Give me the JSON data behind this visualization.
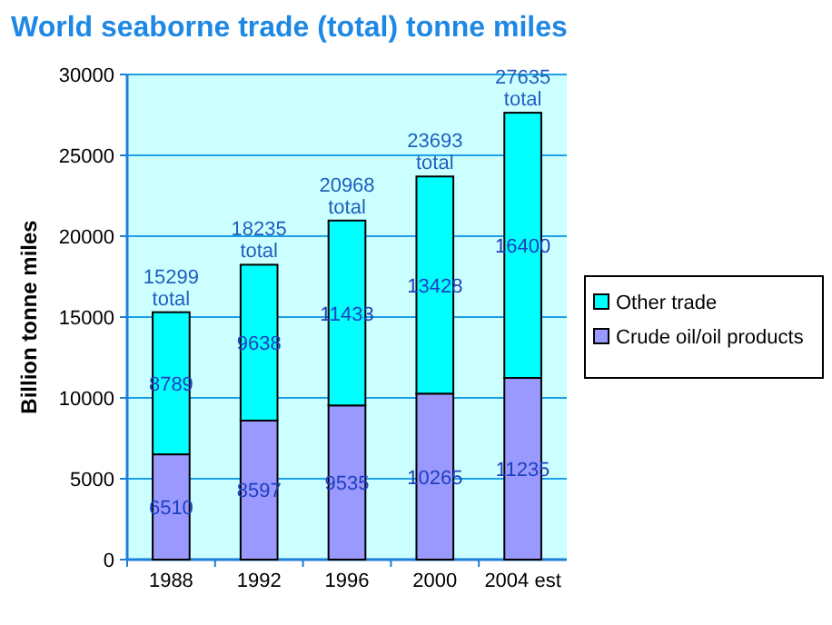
{
  "chart_data": {
    "type": "bar",
    "title": "World seaborne trade (total) tonne miles",
    "ylabel": "Billion tonne miles",
    "categories": [
      "1988",
      "1992",
      "1996",
      "2000",
      "2004 est"
    ],
    "stacked": true,
    "series": [
      {
        "name": "Crude oil/oil products",
        "color": "#9999ff",
        "values": [
          6510,
          8597,
          9535,
          10265,
          11235
        ]
      },
      {
        "name": "Other trade",
        "color": "#00ffff",
        "values": [
          8789,
          9638,
          11433,
          13428,
          16400
        ]
      }
    ],
    "ylim": [
      0,
      30000
    ],
    "yticks": [
      0,
      5000,
      10000,
      15000,
      20000,
      25000,
      30000
    ],
    "grid": "y",
    "legend": "right",
    "data_labels": true,
    "totals": [
      "15299 total",
      "18235 total",
      "20968 total",
      "23693 total",
      "27635 total"
    ]
  }
}
